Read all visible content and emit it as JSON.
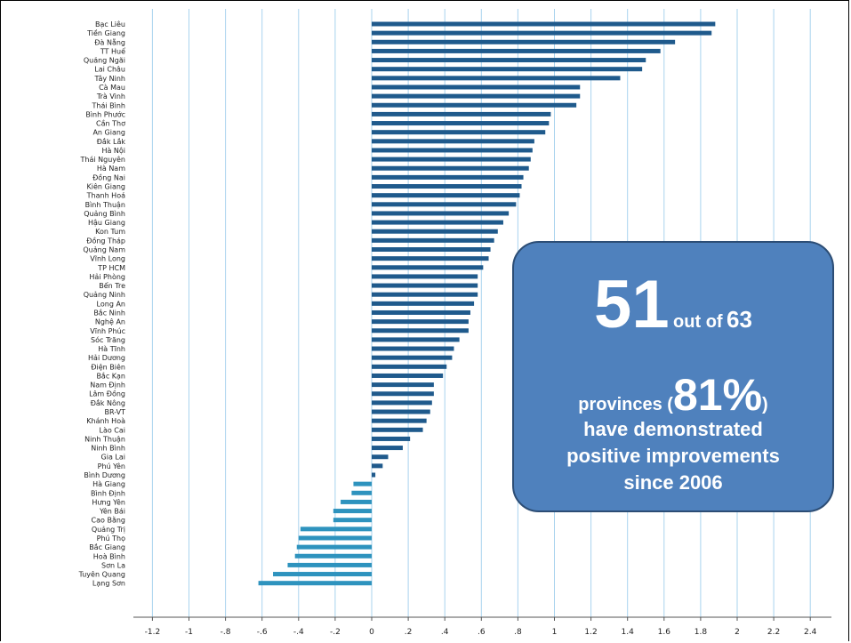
{
  "chart_data": {
    "type": "bar",
    "orientation": "horizontal",
    "categories": [
      "Bạc Liêu",
      "Tiền Giang",
      "Đà Nẵng",
      "TT Huế",
      "Quảng Ngãi",
      "Lai Châu",
      "Tây Ninh",
      "Cà Mau",
      "Trà Vinh",
      "Thái Bình",
      "Bình Phước",
      "Cần Thơ",
      "An Giang",
      "Đắk Lắk",
      "Hà Nội",
      "Thái Nguyên",
      "Hà Nam",
      "Đồng Nai",
      "Kiên Giang",
      "Thanh Hoá",
      "Bình Thuận",
      "Quảng Bình",
      "Hậu Giang",
      "Kon Tum",
      "Đồng Tháp",
      "Quảng Nam",
      "Vĩnh Long",
      "TP HCM",
      "Hải Phòng",
      "Bến Tre",
      "Quảng Ninh",
      "Long An",
      "Bắc Ninh",
      "Nghệ An",
      "Vĩnh Phúc",
      "Sóc Trăng",
      "Hà Tĩnh",
      "Hải Dương",
      "Điện Biên",
      "Bắc Kạn",
      "Nam Định",
      "Lâm Đồng",
      "Đắk Nông",
      "BR-VT",
      "Khánh Hoà",
      "Lào Cai",
      "Ninh Thuận",
      "Ninh Bình",
      "Gia Lai",
      "Phú Yên",
      "Bình Dương",
      "Hà Giang",
      "Bình Định",
      "Hưng Yên",
      "Yên Bái",
      "Cao Bằng",
      "Quảng Trị",
      "Phú Thọ",
      "Bắc Giang",
      "Hoà Bình",
      "Sơn La",
      "Tuyên Quang",
      "Lạng Sơn"
    ],
    "values": [
      1.88,
      1.86,
      1.66,
      1.58,
      1.5,
      1.48,
      1.36,
      1.14,
      1.14,
      1.12,
      0.98,
      0.97,
      0.95,
      0.89,
      0.88,
      0.87,
      0.86,
      0.83,
      0.82,
      0.81,
      0.79,
      0.75,
      0.72,
      0.69,
      0.67,
      0.65,
      0.64,
      0.61,
      0.58,
      0.58,
      0.58,
      0.56,
      0.54,
      0.53,
      0.53,
      0.48,
      0.45,
      0.44,
      0.41,
      0.39,
      0.34,
      0.34,
      0.33,
      0.32,
      0.3,
      0.28,
      0.21,
      0.17,
      0.09,
      0.06,
      0.02,
      -0.1,
      -0.11,
      -0.17,
      -0.21,
      -0.21,
      -0.39,
      -0.4,
      -0.41,
      -0.42,
      -0.46,
      -0.54,
      -0.62
    ],
    "xticks": [
      "-1.2",
      "-1",
      "-.8",
      "-.6",
      "-.4",
      "-.2",
      "0",
      ".2",
      ".4",
      ".6",
      ".8",
      "1",
      "1.2",
      "1.4",
      "1.6",
      "1.8",
      "2",
      "2.2",
      "2.4"
    ],
    "xlim": [
      -1.3,
      2.5
    ],
    "grid": "vertical",
    "colors": {
      "positive": "#1f5a8c",
      "negative": "#2e93be",
      "grid": "#a9d3ee"
    }
  },
  "callout": {
    "count": "51",
    "out_of": "out of",
    "total": "63",
    "provinces": "provinces (",
    "percent": "81%",
    "close_paren": ")",
    "line1": "have demonstrated",
    "line2": "positive improvements",
    "line3": "since 2006"
  }
}
